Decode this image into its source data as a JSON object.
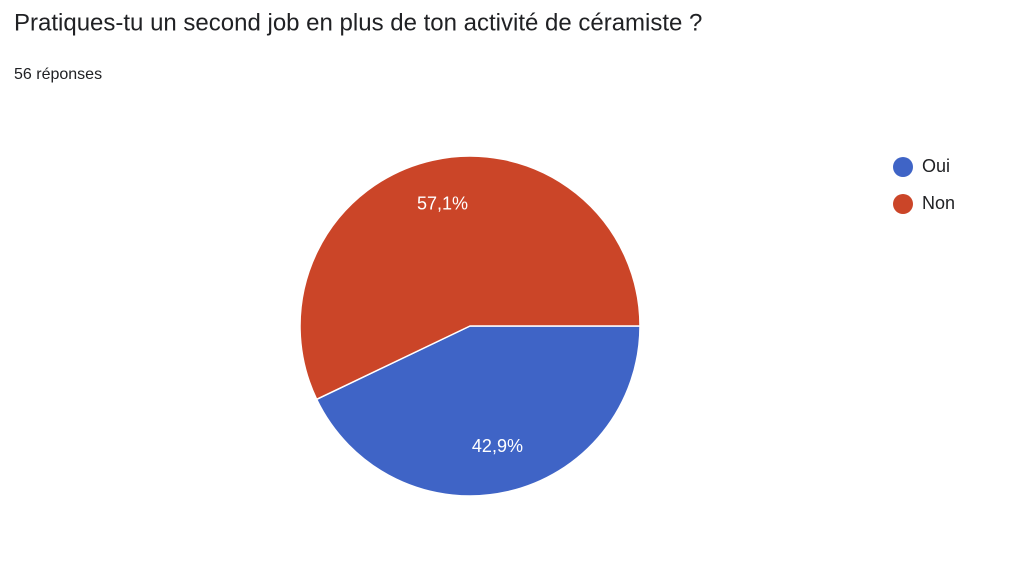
{
  "chart_data": {
    "type": "pie",
    "title": "Pratiques-tu un second job en plus de ton activité de céramiste ?",
    "subtitle": "56 réponses",
    "categories": [
      "Oui",
      "Non"
    ],
    "values": [
      42.9,
      57.1
    ],
    "value_labels": [
      "42,9%",
      "57,1%"
    ],
    "colors": [
      "#3f64c6",
      "#cb4528"
    ],
    "legend": "top-right"
  }
}
